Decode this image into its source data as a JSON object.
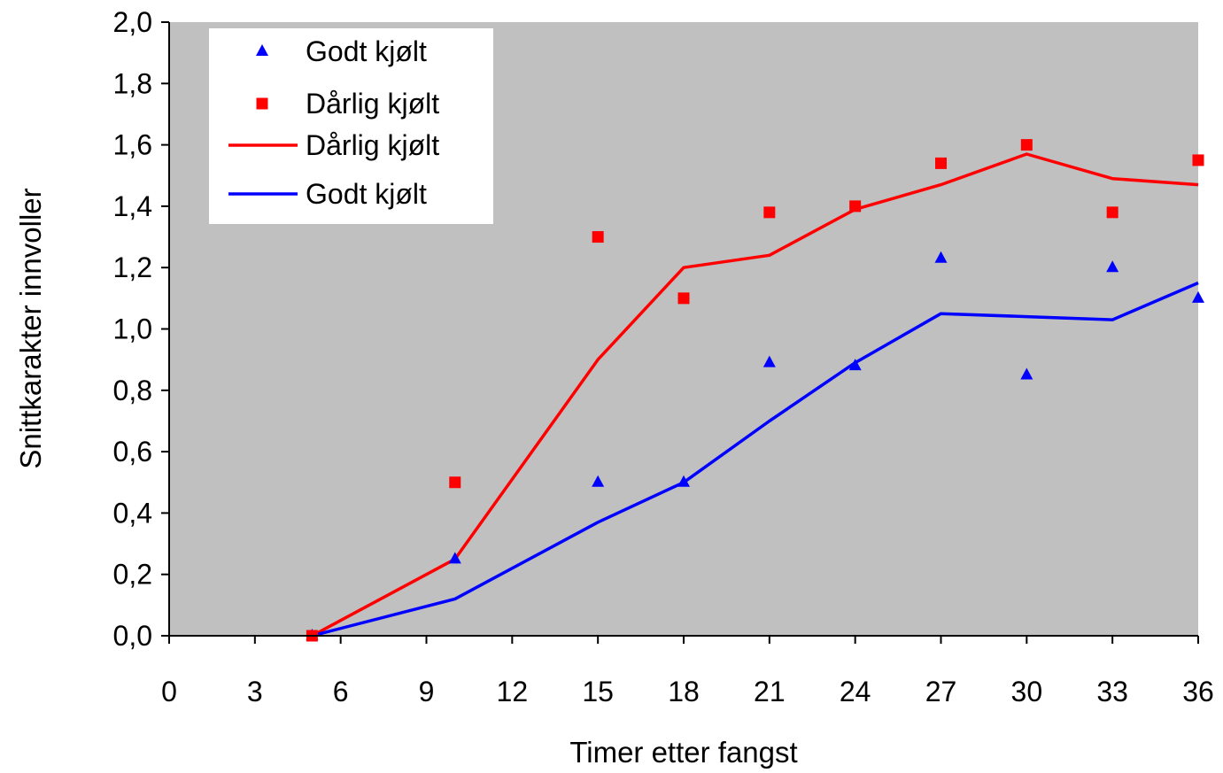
{
  "chart_data": {
    "type": "scatter",
    "title": "",
    "xlabel": "Timer etter fangst",
    "ylabel": "Snittkarakter innvoller",
    "xlim": [
      0,
      36
    ],
    "ylim": [
      0,
      2.0
    ],
    "x_ticks": [
      0,
      3,
      6,
      9,
      12,
      15,
      18,
      21,
      24,
      27,
      30,
      33,
      36
    ],
    "x_tick_labels": [
      "0",
      "3",
      "6",
      "9",
      "12",
      "15",
      "18",
      "21",
      "24",
      "27",
      "30",
      "33",
      "36"
    ],
    "y_ticks": [
      0,
      0.2,
      0.4,
      0.6,
      0.8,
      1.0,
      1.2,
      1.4,
      1.6,
      1.8,
      2.0
    ],
    "y_tick_labels": [
      "0,0",
      "0,2",
      "0,4",
      "0,6",
      "0,8",
      "1,0",
      "1,2",
      "1,4",
      "1,6",
      "1,8",
      "2,0"
    ],
    "grid": false,
    "plot_background": "#C0C0C0",
    "legend_position": "top-left",
    "series": [
      {
        "name": "Godt kjølt",
        "kind": "markers",
        "marker": "triangle",
        "color": "#0000FF",
        "x": [
          5,
          10,
          15,
          18,
          21,
          24,
          27,
          30,
          33,
          36
        ],
        "y": [
          0.0,
          0.25,
          0.5,
          0.5,
          0.89,
          0.88,
          1.23,
          0.85,
          1.2,
          1.1
        ]
      },
      {
        "name": "Dårlig kjølt",
        "kind": "markers",
        "marker": "square",
        "color": "#FF0000",
        "x": [
          5,
          10,
          15,
          18,
          21,
          24,
          27,
          30,
          33,
          36
        ],
        "y": [
          0.0,
          0.5,
          1.3,
          1.1,
          1.38,
          1.4,
          1.54,
          1.6,
          1.38,
          1.55
        ]
      },
      {
        "name": "Dårlig kjølt",
        "kind": "line",
        "color": "#FF0000",
        "x": [
          5,
          10,
          15,
          18,
          21,
          24,
          27,
          30,
          33,
          36
        ],
        "y": [
          0.0,
          0.25,
          0.9,
          1.2,
          1.24,
          1.39,
          1.47,
          1.57,
          1.49,
          1.47
        ]
      },
      {
        "name": "Godt kjølt",
        "kind": "line",
        "color": "#0000FF",
        "x": [
          5,
          10,
          15,
          18,
          21,
          24,
          27,
          30,
          33,
          36
        ],
        "y": [
          0.0,
          0.12,
          0.37,
          0.5,
          0.7,
          0.89,
          1.05,
          1.04,
          1.03,
          1.15
        ]
      }
    ]
  }
}
